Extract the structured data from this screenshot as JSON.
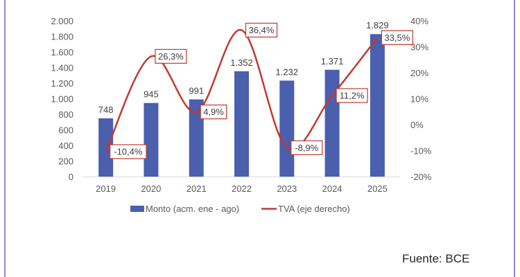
{
  "colors": {
    "bar": "#4a5fae",
    "line": "#c0392f",
    "label_border": "#c0392f",
    "frame": "#8a8fd0"
  },
  "source_text": "Fuente: BCE",
  "chart_data": {
    "type": "bar",
    "title": "",
    "categories": [
      "2019",
      "2020",
      "2021",
      "2022",
      "2023",
      "2024",
      "2025"
    ],
    "series": [
      {
        "name": "Monto (acm. ene - ago)",
        "type": "bar",
        "axis": "left",
        "values": [
          748,
          945,
          991,
          1352,
          1232,
          1371,
          1829
        ],
        "labels": [
          "748",
          "945",
          "991",
          "1.352",
          "1.232",
          "1.371",
          "1.829"
        ]
      },
      {
        "name": "TVA (eje derecho)",
        "type": "line",
        "axis": "right",
        "smooth": true,
        "values": [
          -10.4,
          26.3,
          4.9,
          36.4,
          -8.9,
          11.2,
          33.5
        ],
        "labels": [
          "-10,4%",
          "26,3%",
          "4,9%",
          "36,4%",
          "-8,9%",
          "11,2%",
          "33,5%"
        ]
      }
    ],
    "y_left": {
      "range": [
        0,
        2000
      ],
      "ticks": [
        0,
        200,
        400,
        600,
        800,
        1000,
        1200,
        1400,
        1600,
        1800,
        2000
      ],
      "tick_labels": [
        "0",
        "200",
        "400",
        "600",
        "800",
        "1.000",
        "1.200",
        "1.400",
        "1.600",
        "1.800",
        "2.000"
      ]
    },
    "y_right": {
      "range": [
        -20,
        40
      ],
      "ticks": [
        -20,
        -10,
        0,
        10,
        20,
        30,
        40
      ],
      "tick_labels": [
        "-20%",
        "-10%",
        "0%",
        "10%",
        "20%",
        "30%",
        "40%"
      ]
    },
    "grid": false,
    "legend": {
      "position": "bottom",
      "entries": [
        "Monto (acm. ene - ago)",
        "TVA (eje derecho)"
      ]
    },
    "xlabel": "",
    "ylabel": ""
  }
}
